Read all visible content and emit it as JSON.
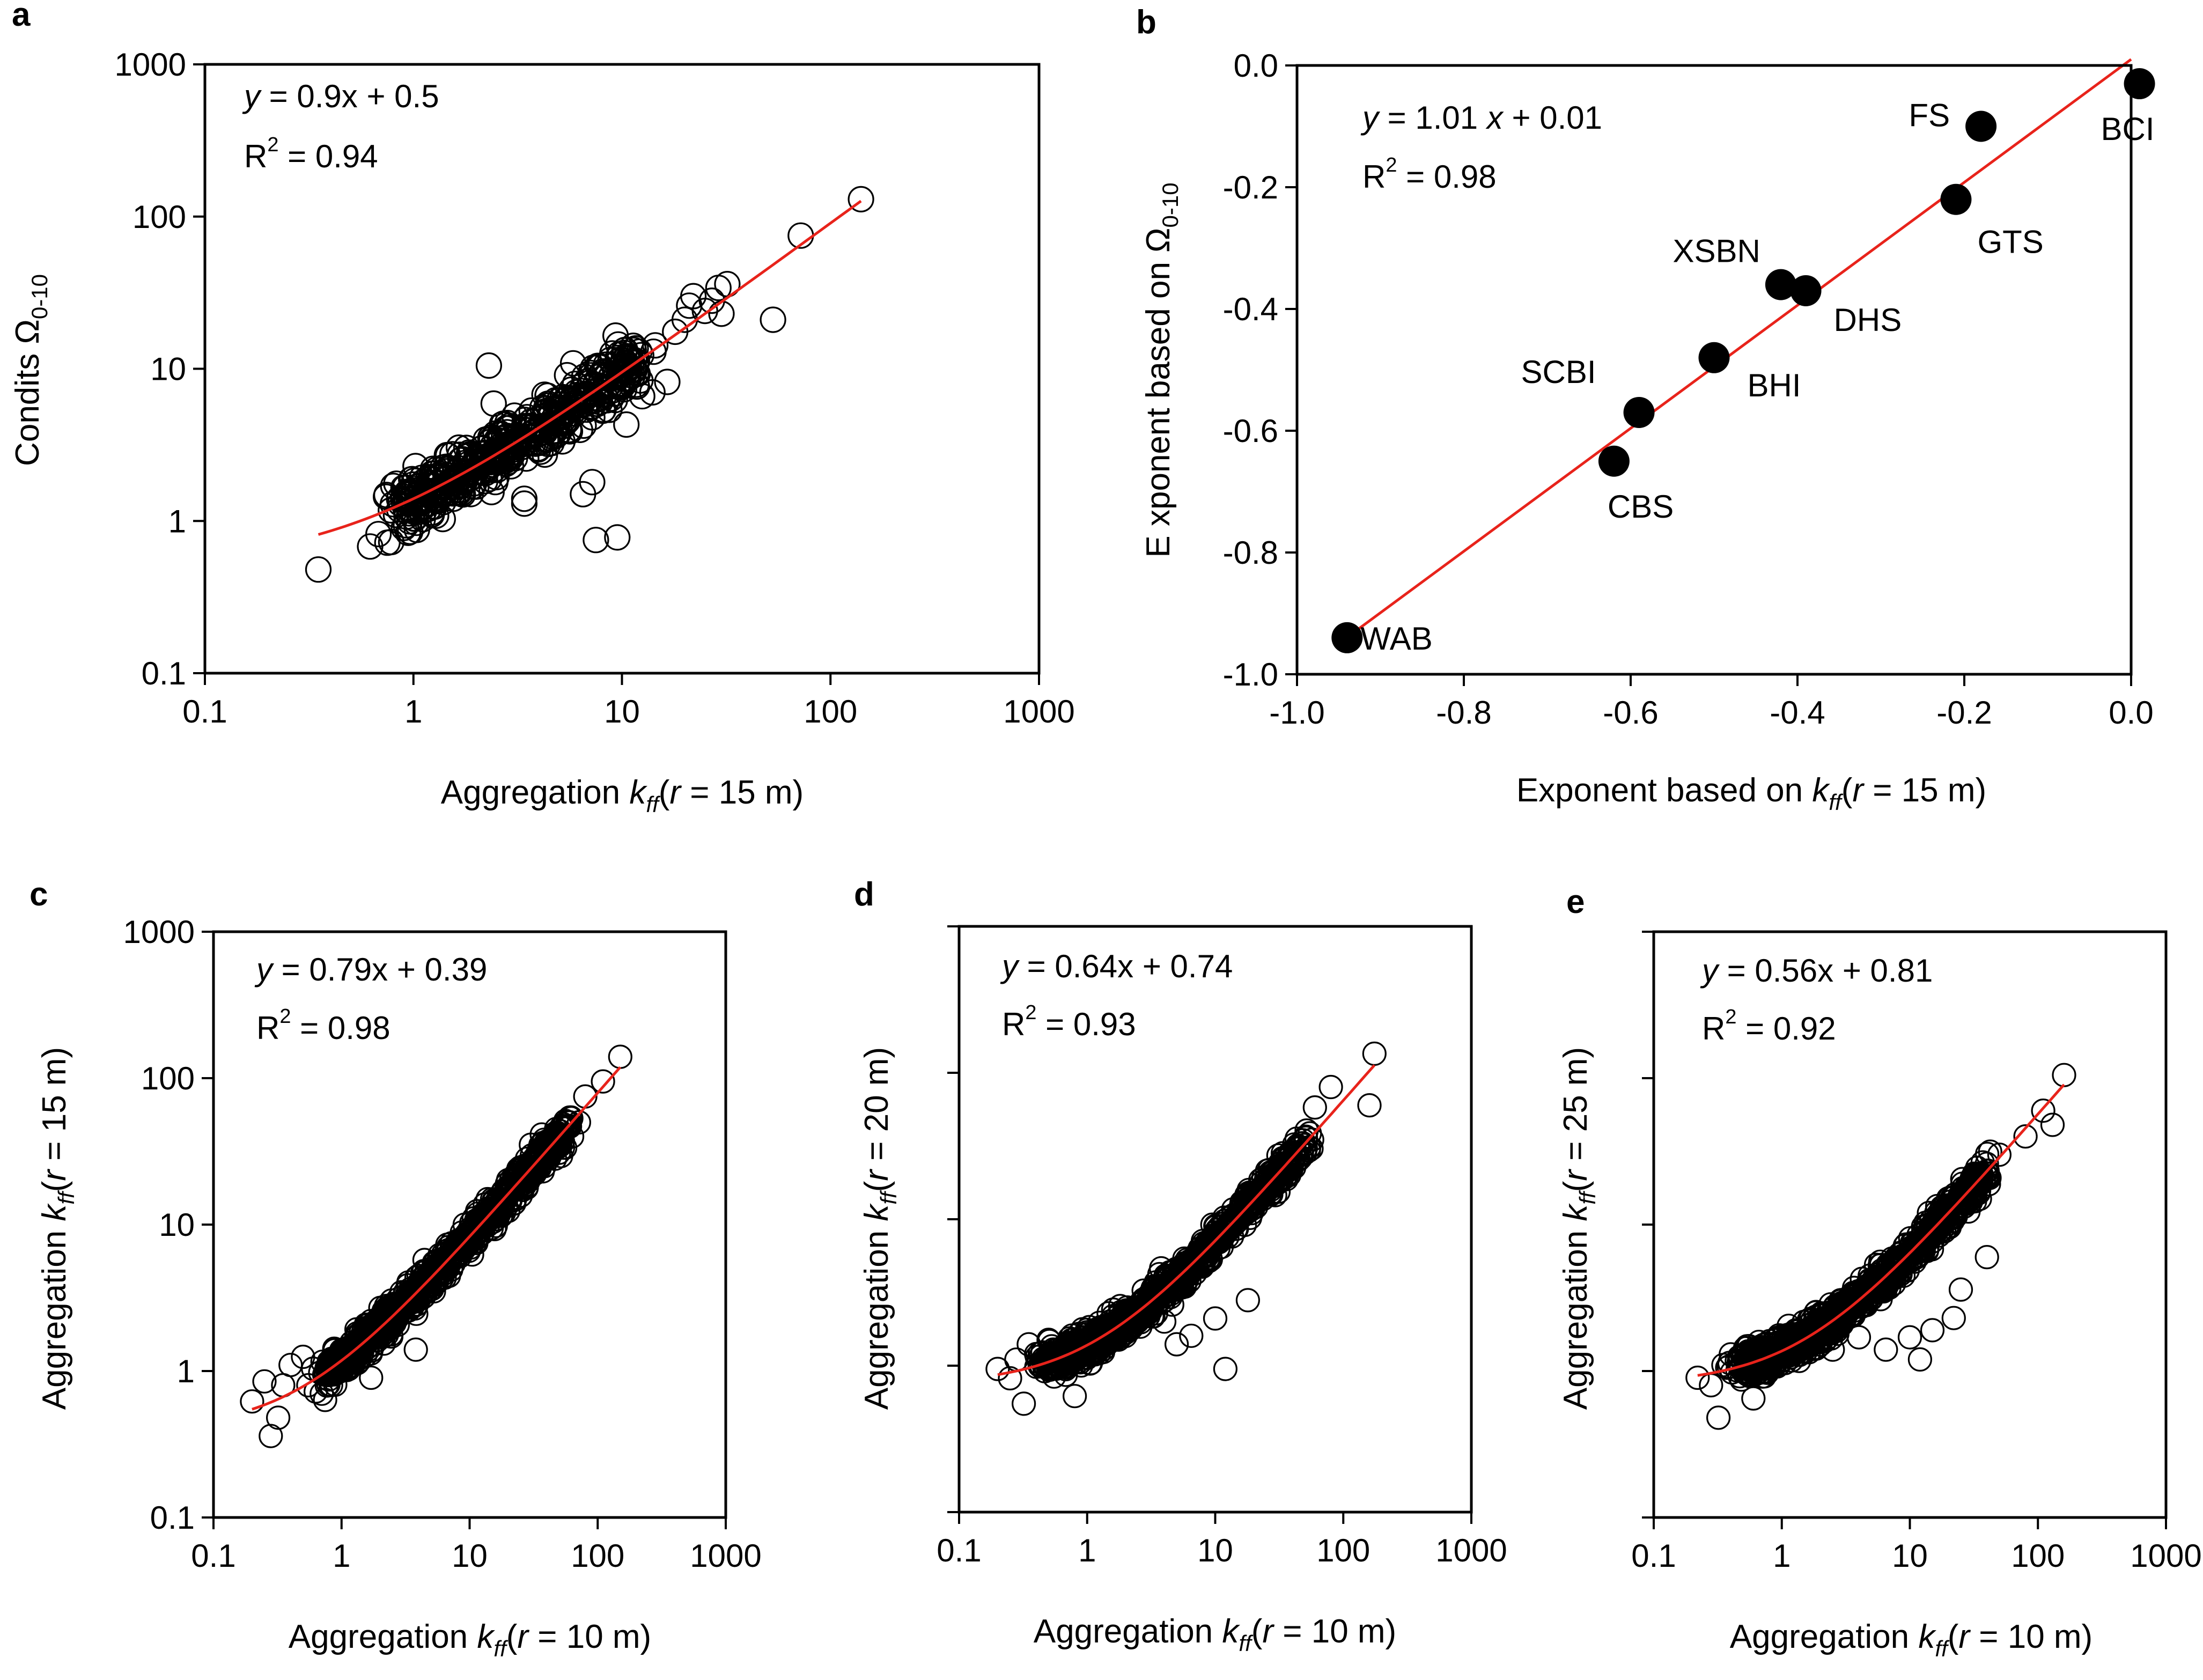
{
  "colors": {
    "fit_line": "#e8231b",
    "ink": "#000000",
    "background": "#ffffff"
  },
  "chart_data": [
    {
      "id": "a",
      "panel_label": "a",
      "type": "scatter",
      "x_scale": "log",
      "y_scale": "log",
      "xlim": [
        0.1,
        1000
      ],
      "ylim": [
        0.1,
        1000
      ],
      "x_ticks": [
        "0.1",
        "1",
        "10",
        "100",
        "1000"
      ],
      "y_ticks": [
        "0.1",
        "1",
        "10",
        "100",
        "1000"
      ],
      "xlabel": {
        "pre": "Aggregation ",
        "k": "k",
        "sub": "ff",
        "post": "(",
        "r": "r",
        "tail": " = 15 m)"
      },
      "ylabel": {
        "pre": "Condits ",
        "symbol": "Ω",
        "sub": "0-10"
      },
      "equation": {
        "y": "y",
        "rest": " = 0.9x + 0.5"
      },
      "r2": {
        "R": "R",
        "sup": "2",
        "rest": " = 0.94"
      },
      "fit": {
        "slope": 0.9,
        "intercept": 0.5,
        "form": "y = 0.9x + 0.5"
      },
      "points_main": {
        "x_range": [
          0.9,
          12
        ],
        "center": [
          3.5,
          4.0
        ],
        "count": 520
      },
      "points_outlier": [
        [
          0.35,
          0.48
        ],
        [
          0.62,
          0.68
        ],
        [
          0.68,
          0.82
        ],
        [
          0.75,
          0.72
        ],
        [
          0.8,
          1.7
        ],
        [
          0.9,
          0.9
        ],
        [
          2.3,
          10.5
        ],
        [
          3.4,
          1.3
        ],
        [
          3.4,
          1.4
        ],
        [
          7.5,
          0.75
        ],
        [
          9.5,
          0.78
        ],
        [
          6.5,
          1.5
        ],
        [
          7.2,
          1.8
        ],
        [
          10.5,
          4.3
        ],
        [
          11.5,
          9.8
        ],
        [
          12.5,
          6.6
        ],
        [
          14,
          7
        ],
        [
          16.5,
          8.2
        ],
        [
          18,
          17.5
        ],
        [
          20,
          21
        ],
        [
          21,
          26
        ],
        [
          22,
          30
        ],
        [
          25,
          24
        ],
        [
          27,
          28
        ],
        [
          29,
          34
        ],
        [
          30,
          23
        ],
        [
          32,
          36
        ],
        [
          53,
          21
        ],
        [
          72,
          75
        ],
        [
          140,
          130
        ]
      ]
    },
    {
      "id": "b",
      "panel_label": "b",
      "type": "scatter",
      "x_scale": "linear",
      "y_scale": "linear",
      "xlim": [
        -1.0,
        0.0
      ],
      "ylim": [
        -1.0,
        0.0
      ],
      "x_ticks": [
        "-1.0",
        "-0.8",
        "-0.6",
        "-0.4",
        "-0.2",
        "0.0"
      ],
      "y_ticks": [
        "-1.0",
        "-0.8",
        "-0.6",
        "-0.4",
        "-0.2",
        "0.0"
      ],
      "xlabel": {
        "pre": "Exponent based on ",
        "k": "k",
        "sub": "ff",
        "post": "(",
        "r": "r",
        "tail": " = 15 m)"
      },
      "ylabel": {
        "pre": "E xponent based on ",
        "symbol": "Ω",
        "sub": "0-10"
      },
      "equation": {
        "y": "y",
        "mid": " = 1.01 ",
        "x": "x",
        "rest": " + 0.01"
      },
      "r2": {
        "R": "R",
        "sup": "2",
        "rest": " = 0.98"
      },
      "fit": {
        "slope": 1.01,
        "intercept": 0.01,
        "x_range": [
          -0.94,
          0.0
        ]
      },
      "sites": [
        {
          "name": "WAB",
          "x": -0.94,
          "y": -0.94
        },
        {
          "name": "CBS",
          "x": -0.62,
          "y": -0.65
        },
        {
          "name": "SCBI",
          "x": -0.59,
          "y": -0.57
        },
        {
          "name": "BHI",
          "x": -0.5,
          "y": -0.48
        },
        {
          "name": "XSBN",
          "x": -0.42,
          "y": -0.36
        },
        {
          "name": "DHS",
          "x": -0.39,
          "y": -0.37
        },
        {
          "name": "GTS",
          "x": -0.21,
          "y": -0.22
        },
        {
          "name": "FS",
          "x": -0.18,
          "y": -0.1
        },
        {
          "name": "BCI",
          "x": 0.01,
          "y": -0.03
        }
      ]
    },
    {
      "id": "c",
      "panel_label": "c",
      "type": "scatter",
      "x_scale": "log",
      "y_scale": "log",
      "xlim": [
        0.1,
        1000
      ],
      "ylim": [
        0.1,
        1000
      ],
      "x_ticks": [
        "0.1",
        "1",
        "10",
        "100",
        "1000"
      ],
      "y_ticks": [
        "0.1",
        "1",
        "10",
        "100",
        "1000"
      ],
      "xlabel": {
        "pre": "Aggregation ",
        "k": "k",
        "sub": "ff",
        "post": "(",
        "r": "r",
        "tail": " = 10 m)"
      },
      "ylabel": {
        "pre": "Aggregation ",
        "k": "k",
        "sub": "ff",
        "post": "(",
        "r": "r",
        "tail": " = 15 m)"
      },
      "equation": {
        "y": "y",
        "rest": " = 0.79x + 0.39"
      },
      "r2": {
        "R": "R",
        "sup": "2",
        "rest": " = 0.98"
      },
      "fit": {
        "slope": 0.79,
        "intercept": 0.39
      },
      "points_main": {
        "x_range": [
          0.8,
          60
        ],
        "count": 900
      },
      "points_outlier": [
        [
          0.2,
          0.62
        ],
        [
          0.25,
          0.85
        ],
        [
          0.28,
          0.36
        ],
        [
          0.32,
          0.48
        ],
        [
          0.35,
          0.8
        ],
        [
          0.4,
          1.1
        ],
        [
          0.5,
          1.25
        ],
        [
          0.55,
          0.8
        ],
        [
          0.7,
          0.7
        ],
        [
          1.7,
          0.9
        ],
        [
          3.8,
          1.4
        ],
        [
          60,
          50
        ],
        [
          80,
          75
        ],
        [
          110,
          95
        ],
        [
          150,
          140
        ]
      ]
    },
    {
      "id": "d",
      "panel_label": "d",
      "type": "scatter",
      "x_scale": "log",
      "y_scale": "log",
      "xlim": [
        0.1,
        1000
      ],
      "ylim": [
        0.1,
        1000
      ],
      "x_ticks": [
        "0.1",
        "1",
        "10",
        "100",
        "1000"
      ],
      "y_ticks": [],
      "xlabel": {
        "pre": "Aggregation ",
        "k": "k",
        "sub": "ff",
        "post": "(",
        "r": "r",
        "tail": " = 10 m)"
      },
      "ylabel": {
        "pre": "Aggregation ",
        "k": "k",
        "sub": "ff",
        "post": "(",
        "r": "r",
        "tail": " = 20 m)"
      },
      "equation": {
        "y": "y",
        "rest": " = 0.64x + 0.74"
      },
      "r2": {
        "R": "R",
        "sup": "2",
        "rest": " = 0.93"
      },
      "fit": {
        "slope": 0.64,
        "intercept": 0.74
      },
      "points_main": {
        "x_range": [
          0.5,
          50
        ],
        "count": 900
      },
      "points_outlier": [
        [
          0.2,
          0.95
        ],
        [
          0.25,
          0.82
        ],
        [
          0.28,
          1.1
        ],
        [
          0.32,
          0.55
        ],
        [
          0.35,
          1.4
        ],
        [
          0.4,
          1.2
        ],
        [
          0.5,
          1.5
        ],
        [
          0.8,
          0.62
        ],
        [
          4,
          2
        ],
        [
          5,
          1.4
        ],
        [
          6.5,
          1.6
        ],
        [
          10,
          2.1
        ],
        [
          12,
          0.95
        ],
        [
          18,
          2.8
        ],
        [
          60,
          58
        ],
        [
          80,
          80
        ],
        [
          160,
          60
        ],
        [
          175,
          135
        ]
      ]
    },
    {
      "id": "e",
      "panel_label": "e",
      "type": "scatter",
      "x_scale": "log",
      "y_scale": "log",
      "xlim": [
        0.1,
        1000
      ],
      "ylim": [
        0.1,
        1000
      ],
      "x_ticks": [
        "0.1",
        "1",
        "10",
        "100",
        "1000"
      ],
      "y_ticks": [],
      "xlabel": {
        "pre": "Aggregation ",
        "k": "k",
        "sub": "ff",
        "post": "(",
        "r": "r",
        "tail": " = 10 m)"
      },
      "ylabel": {
        "pre": "Aggregation ",
        "k": "k",
        "sub": "ff",
        "post": "(",
        "r": "r",
        "tail": " = 25 m)"
      },
      "equation": {
        "y": "y",
        "rest": " = 0.56x + 0.81"
      },
      "r2": {
        "R": "R",
        "sup": "2",
        "rest": " = 0.92"
      },
      "fit": {
        "slope": 0.56,
        "intercept": 0.81
      },
      "points_main": {
        "x_range": [
          0.5,
          40
        ],
        "count": 900
      },
      "points_outlier": [
        [
          0.22,
          0.9
        ],
        [
          0.28,
          0.8
        ],
        [
          0.32,
          0.48
        ],
        [
          0.35,
          1.1
        ],
        [
          0.4,
          1.3
        ],
        [
          0.5,
          1.15
        ],
        [
          0.6,
          0.65
        ],
        [
          0.8,
          1.6
        ],
        [
          2.5,
          1.4
        ],
        [
          4,
          1.7
        ],
        [
          6.5,
          1.4
        ],
        [
          10,
          1.7
        ],
        [
          12,
          1.2
        ],
        [
          15,
          1.9
        ],
        [
          22,
          2.3
        ],
        [
          25,
          3.6
        ],
        [
          40,
          6
        ],
        [
          50,
          30
        ],
        [
          80,
          40
        ],
        [
          110,
          60
        ],
        [
          130,
          48
        ],
        [
          160,
          105
        ]
      ]
    }
  ]
}
